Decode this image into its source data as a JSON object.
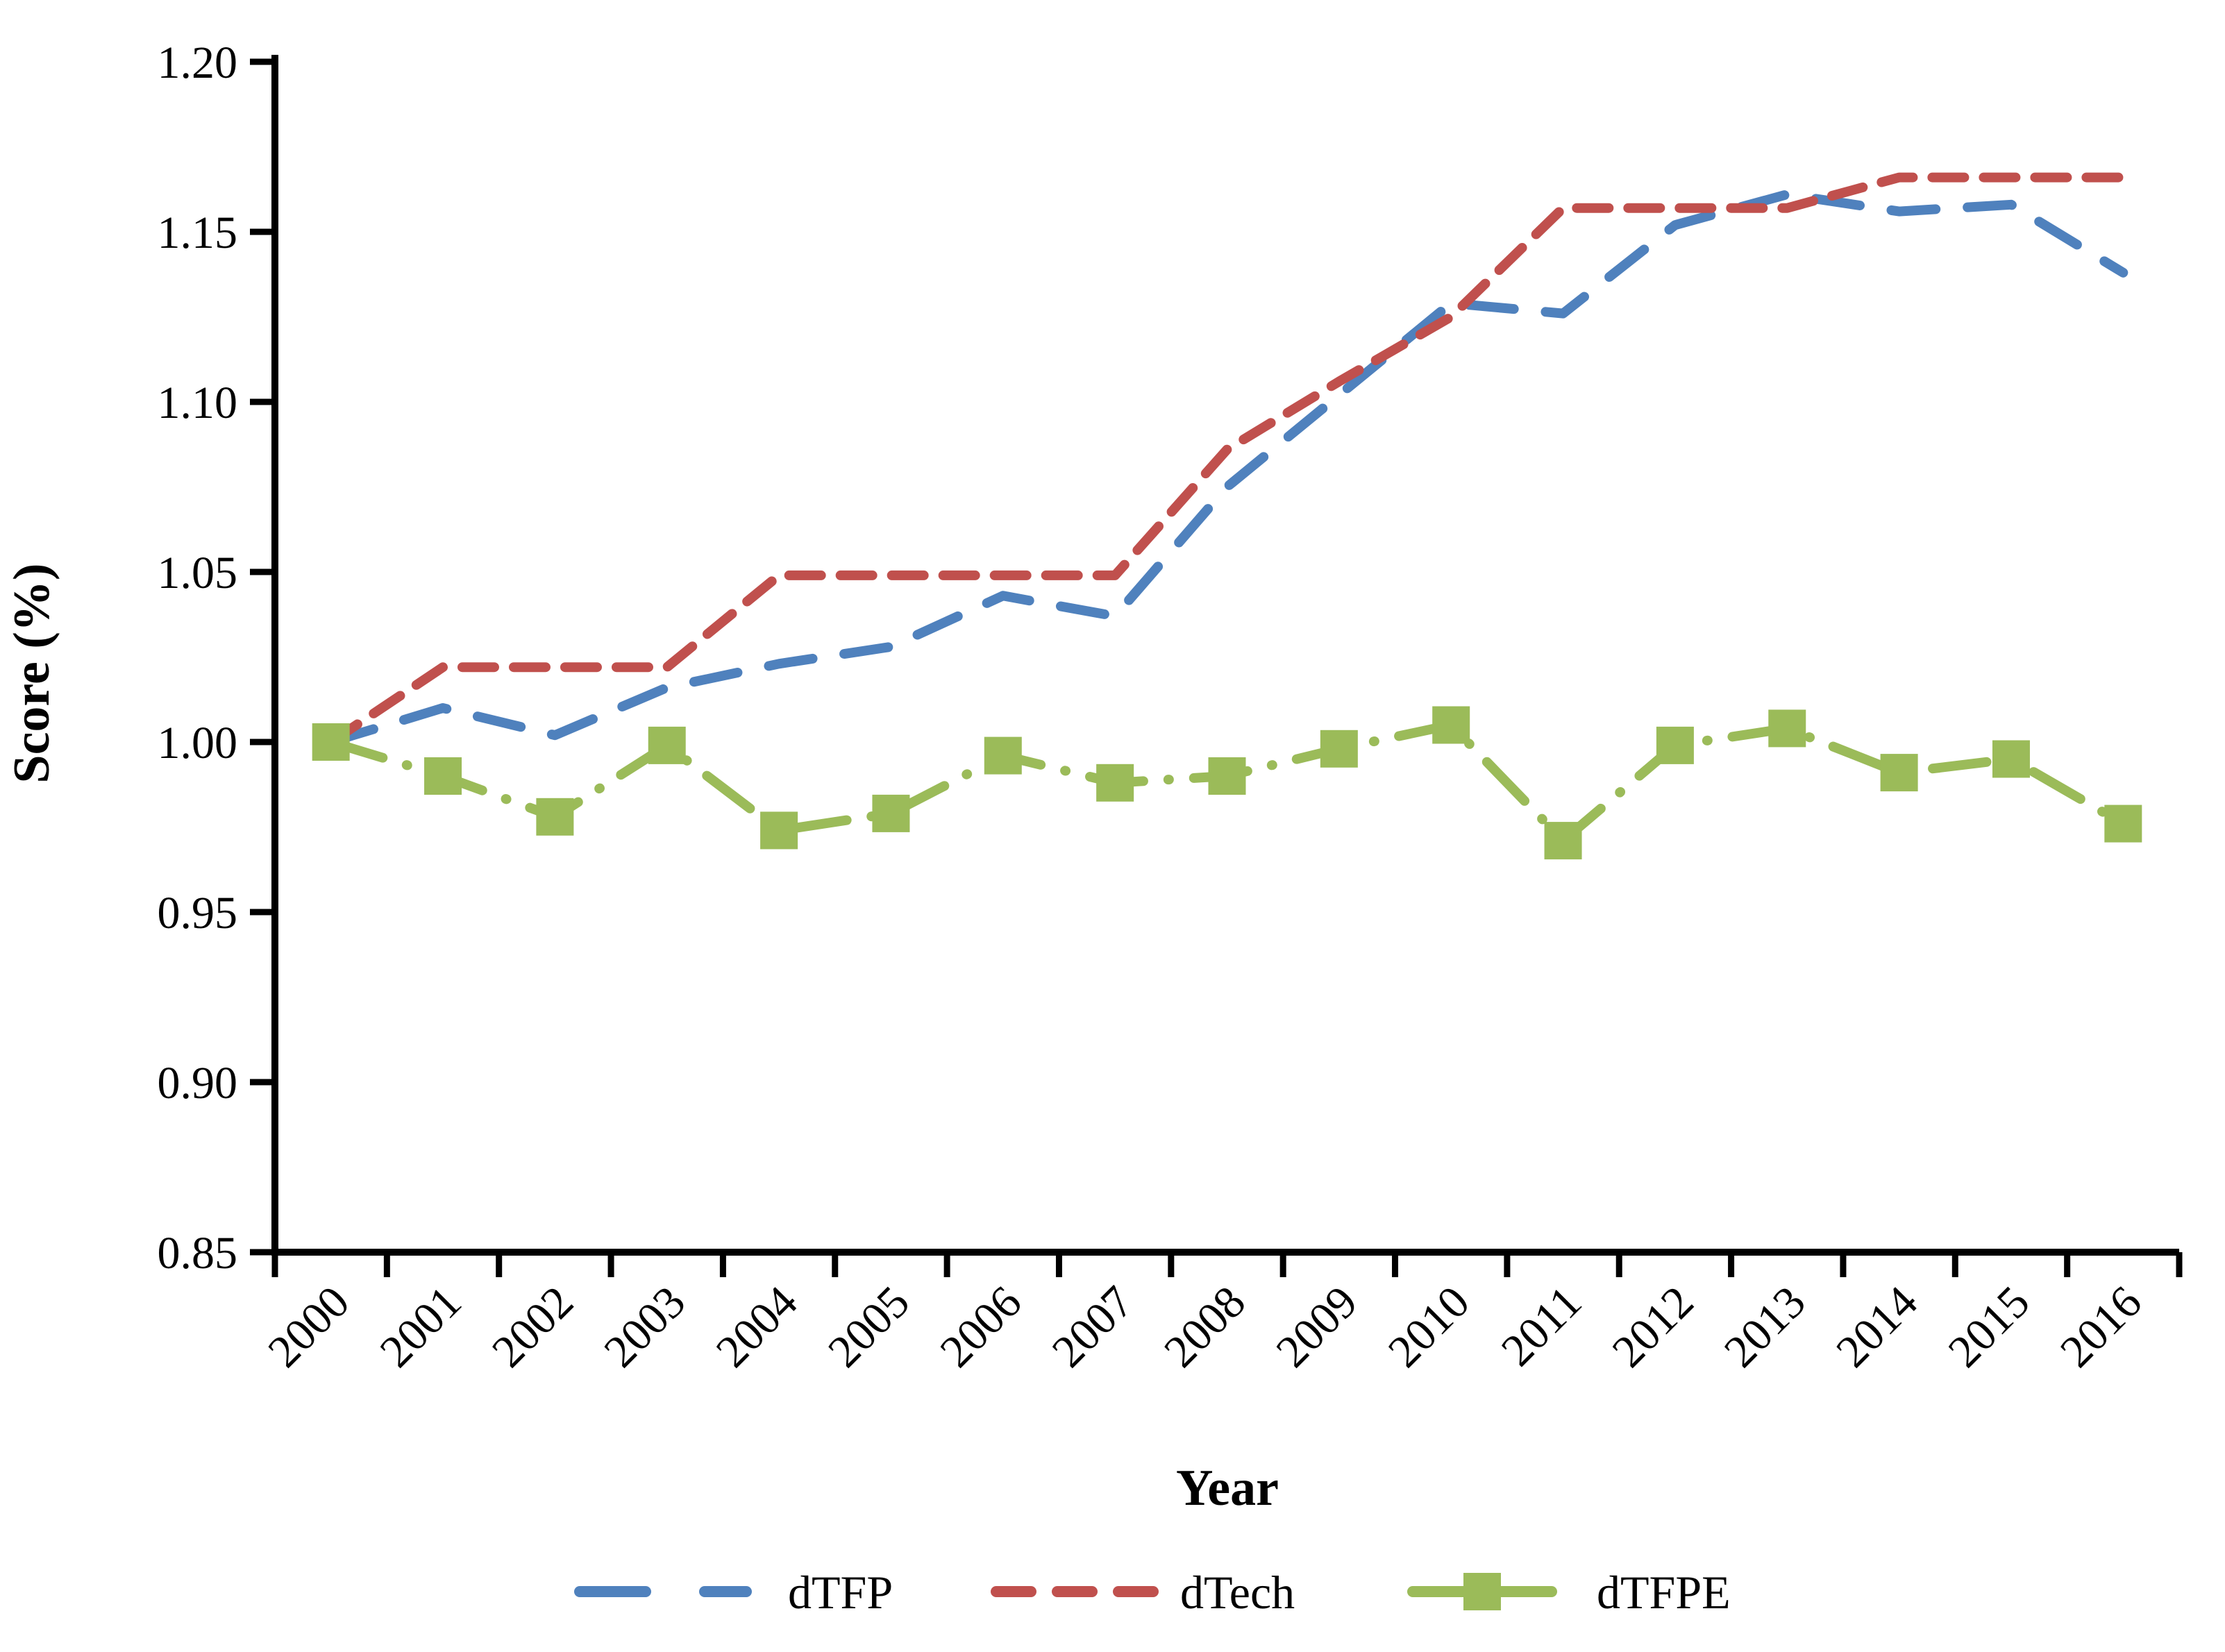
{
  "figure": {
    "background_color": "#ffffff",
    "axis_color": "#000000",
    "text_color": "#000000"
  },
  "chart_data": {
    "type": "line",
    "title": "",
    "xlabel": "Year",
    "ylabel": "Score (%)",
    "x_categories": [
      "2000",
      "2001",
      "2002",
      "2003",
      "2004",
      "2005",
      "2006",
      "2007",
      "2008",
      "2009",
      "2010",
      "2011",
      "2012",
      "2013",
      "2014",
      "2015",
      "2016"
    ],
    "ylim": [
      0.85,
      1.2
    ],
    "ytick_step": 0.05,
    "yticks": [
      "0.85",
      "0.90",
      "0.95",
      "1.00",
      "1.05",
      "1.10",
      "1.15",
      "1.20"
    ],
    "grid": false,
    "legend_position": "bottom-center",
    "series": [
      {
        "name": "dTFP",
        "color": "#4F81BD",
        "line_style": "long-dash",
        "marker": "none",
        "values": [
          1.0,
          1.01,
          1.002,
          1.016,
          1.023,
          1.028,
          1.043,
          1.037,
          1.075,
          1.102,
          1.129,
          1.126,
          1.152,
          1.161,
          1.156,
          1.158,
          1.138
        ]
      },
      {
        "name": "dTech",
        "color": "#C0504D",
        "line_style": "short-dash",
        "marker": "none",
        "values": [
          1.0,
          1.022,
          1.022,
          1.022,
          1.049,
          1.049,
          1.049,
          1.049,
          1.086,
          1.106,
          1.125,
          1.157,
          1.157,
          1.157,
          1.166,
          1.166,
          1.166
        ]
      },
      {
        "name": "dTFPE",
        "color": "#9BBB59",
        "line_style": "dash-dot",
        "marker": "square",
        "values": [
          1.0,
          0.99,
          0.978,
          0.999,
          0.974,
          0.979,
          0.996,
          0.988,
          0.99,
          0.998,
          1.005,
          0.971,
          0.999,
          1.004,
          0.991,
          0.995,
          0.976
        ]
      }
    ]
  }
}
